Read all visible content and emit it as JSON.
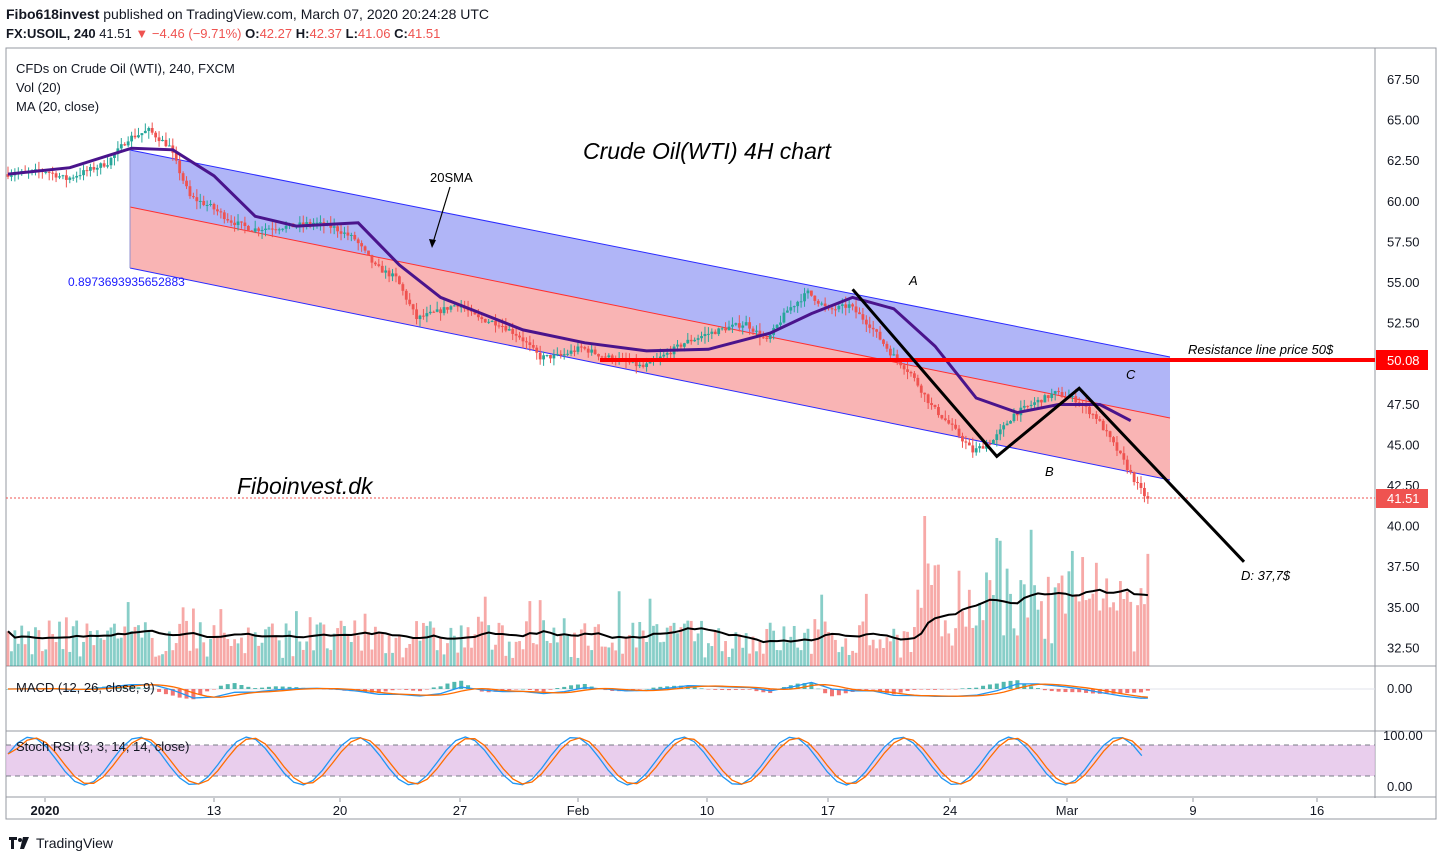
{
  "header": {
    "author": "Fibo618invest",
    "published": "published on TradingView.com, March 07, 2020 20:24:28 UTC",
    "symbol": "FX:USOIL, 240",
    "last": "41.51",
    "change_arrow": "▼",
    "change": "−4.46 (−9.71%)",
    "o_label": "O:",
    "o_value": "42.27",
    "h_label": "H:",
    "h_value": "42.37",
    "l_label": "L:",
    "l_value": "41.06",
    "c_label": "C:",
    "c_value": "41.51"
  },
  "panes": {
    "main_title": "CFDs on Crude Oil (WTI), 240, FXCM",
    "vol_label": "Vol (20)",
    "ma_label": "MA (20, close)",
    "macd_label": "MACD (12, 26, close, 9)",
    "stoch_label": "Stoch RSI (3, 3, 14, 14, close)"
  },
  "annotations": {
    "chart_title": "Crude Oil(WTI) 4H chart",
    "sma_note": "20SMA",
    "channel_value": "0.8973693935652883",
    "brand": "Fiboinvest.dk",
    "resistance": "Resistance line price 50$",
    "point_a": "A",
    "point_b": "B",
    "point_c": "C",
    "target": "D: 37,7$"
  },
  "price_axis": {
    "ticks": [
      "67.50",
      "65.00",
      "62.50",
      "60.00",
      "57.50",
      "55.00",
      "52.50",
      "50.00",
      "47.50",
      "45.00",
      "42.50",
      "40.00",
      "37.50",
      "35.00",
      "32.50"
    ],
    "resistance_tag": "50.08",
    "last_tag": "41.51"
  },
  "macd_axis": {
    "ticks": [
      "0.00"
    ]
  },
  "stoch_axis": {
    "ticks": [
      "100.00",
      "0.00"
    ]
  },
  "time_axis": {
    "ticks": [
      "2020",
      "13",
      "20",
      "27",
      "Feb",
      "10",
      "17",
      "24",
      "Mar",
      "9",
      "16"
    ]
  },
  "footer": {
    "logo": "TradingView"
  },
  "colors": {
    "up": "#26a69a",
    "down": "#ef5350",
    "ma": "#4a148c",
    "channel_upper": "#8088f0",
    "channel_lower": "#f59a9a",
    "resistance": "#ff0000"
  },
  "chart_data": {
    "type": "candlestick",
    "symbol": "FX:USOIL",
    "timeframe": "240",
    "ylim": [
      30.5,
      69
    ],
    "x_ticks": [
      "2020",
      "13",
      "20",
      "27",
      "Feb",
      "10",
      "17",
      "24",
      "Mar",
      "9",
      "16"
    ],
    "price_path": [
      [
        0,
        61.6
      ],
      [
        2,
        61.8
      ],
      [
        3,
        61.3
      ],
      [
        5,
        62.3
      ],
      [
        6,
        63.8
      ],
      [
        7,
        64.3
      ],
      [
        8,
        63.3
      ],
      [
        9,
        60.2
      ],
      [
        10,
        59.6
      ],
      [
        11,
        58.7
      ],
      [
        12,
        58.2
      ],
      [
        13,
        58.3
      ],
      [
        14,
        58.4
      ],
      [
        15,
        58.6
      ],
      [
        16,
        58.3
      ],
      [
        17,
        57.6
      ],
      [
        18,
        55.9
      ],
      [
        19,
        55.2
      ],
      [
        20,
        52.7
      ],
      [
        21,
        53.1
      ],
      [
        22,
        53.6
      ],
      [
        23,
        52.7
      ],
      [
        24,
        52.4
      ],
      [
        25,
        51.6
      ],
      [
        26,
        50.3
      ],
      [
        27,
        50.4
      ],
      [
        28,
        50.9
      ],
      [
        29,
        50.4
      ],
      [
        30,
        50.1
      ],
      [
        31,
        49.7
      ],
      [
        32,
        50.4
      ],
      [
        33,
        51.2
      ],
      [
        34,
        51.7
      ],
      [
        35,
        52.1
      ],
      [
        36,
        52.4
      ],
      [
        37,
        51.3
      ],
      [
        38,
        53.2
      ],
      [
        39,
        54.3
      ],
      [
        40,
        53.2
      ],
      [
        41,
        53.5
      ],
      [
        42,
        52.3
      ],
      [
        43,
        50.6
      ],
      [
        44,
        49.3
      ],
      [
        45,
        47.3
      ],
      [
        46,
        46.0
      ],
      [
        47,
        44.5
      ],
      [
        48,
        45.2
      ],
      [
        49,
        46.8
      ],
      [
        50,
        47.5
      ],
      [
        51,
        48.1
      ],
      [
        52,
        47.7
      ],
      [
        53,
        46.6
      ],
      [
        54,
        44.6
      ],
      [
        55,
        42.4
      ],
      [
        55.5,
        41.51
      ]
    ],
    "ma_20": [
      [
        0,
        61.6
      ],
      [
        3,
        62.0
      ],
      [
        6,
        63.2
      ],
      [
        8,
        63.1
      ],
      [
        10,
        61.5
      ],
      [
        12,
        59.0
      ],
      [
        14,
        58.4
      ],
      [
        17,
        58.6
      ],
      [
        19,
        56.0
      ],
      [
        21,
        54.0
      ],
      [
        23,
        53.0
      ],
      [
        25,
        52.0
      ],
      [
        28,
        51.2
      ],
      [
        31,
        50.7
      ],
      [
        34,
        50.8
      ],
      [
        37,
        51.8
      ],
      [
        39,
        53.0
      ],
      [
        41,
        54.0
      ],
      [
        43,
        53.3
      ],
      [
        45,
        51.0
      ],
      [
        47,
        47.8
      ],
      [
        49,
        46.9
      ],
      [
        51,
        47.4
      ],
      [
        53,
        47.4
      ],
      [
        54.5,
        46.4
      ]
    ],
    "volume_note": "Vol (20) histogram with 20-period MA line",
    "markers": {
      "A": {
        "x": 41,
        "price": 54.5
      },
      "B": {
        "x": 48,
        "price": 44.2
      },
      "C": {
        "x": 52,
        "price": 48.4
      },
      "D": {
        "x": 60,
        "price": 37.7
      }
    },
    "resistance_level": 50.08,
    "last_price": 41.51,
    "target_price": 37.7
  }
}
